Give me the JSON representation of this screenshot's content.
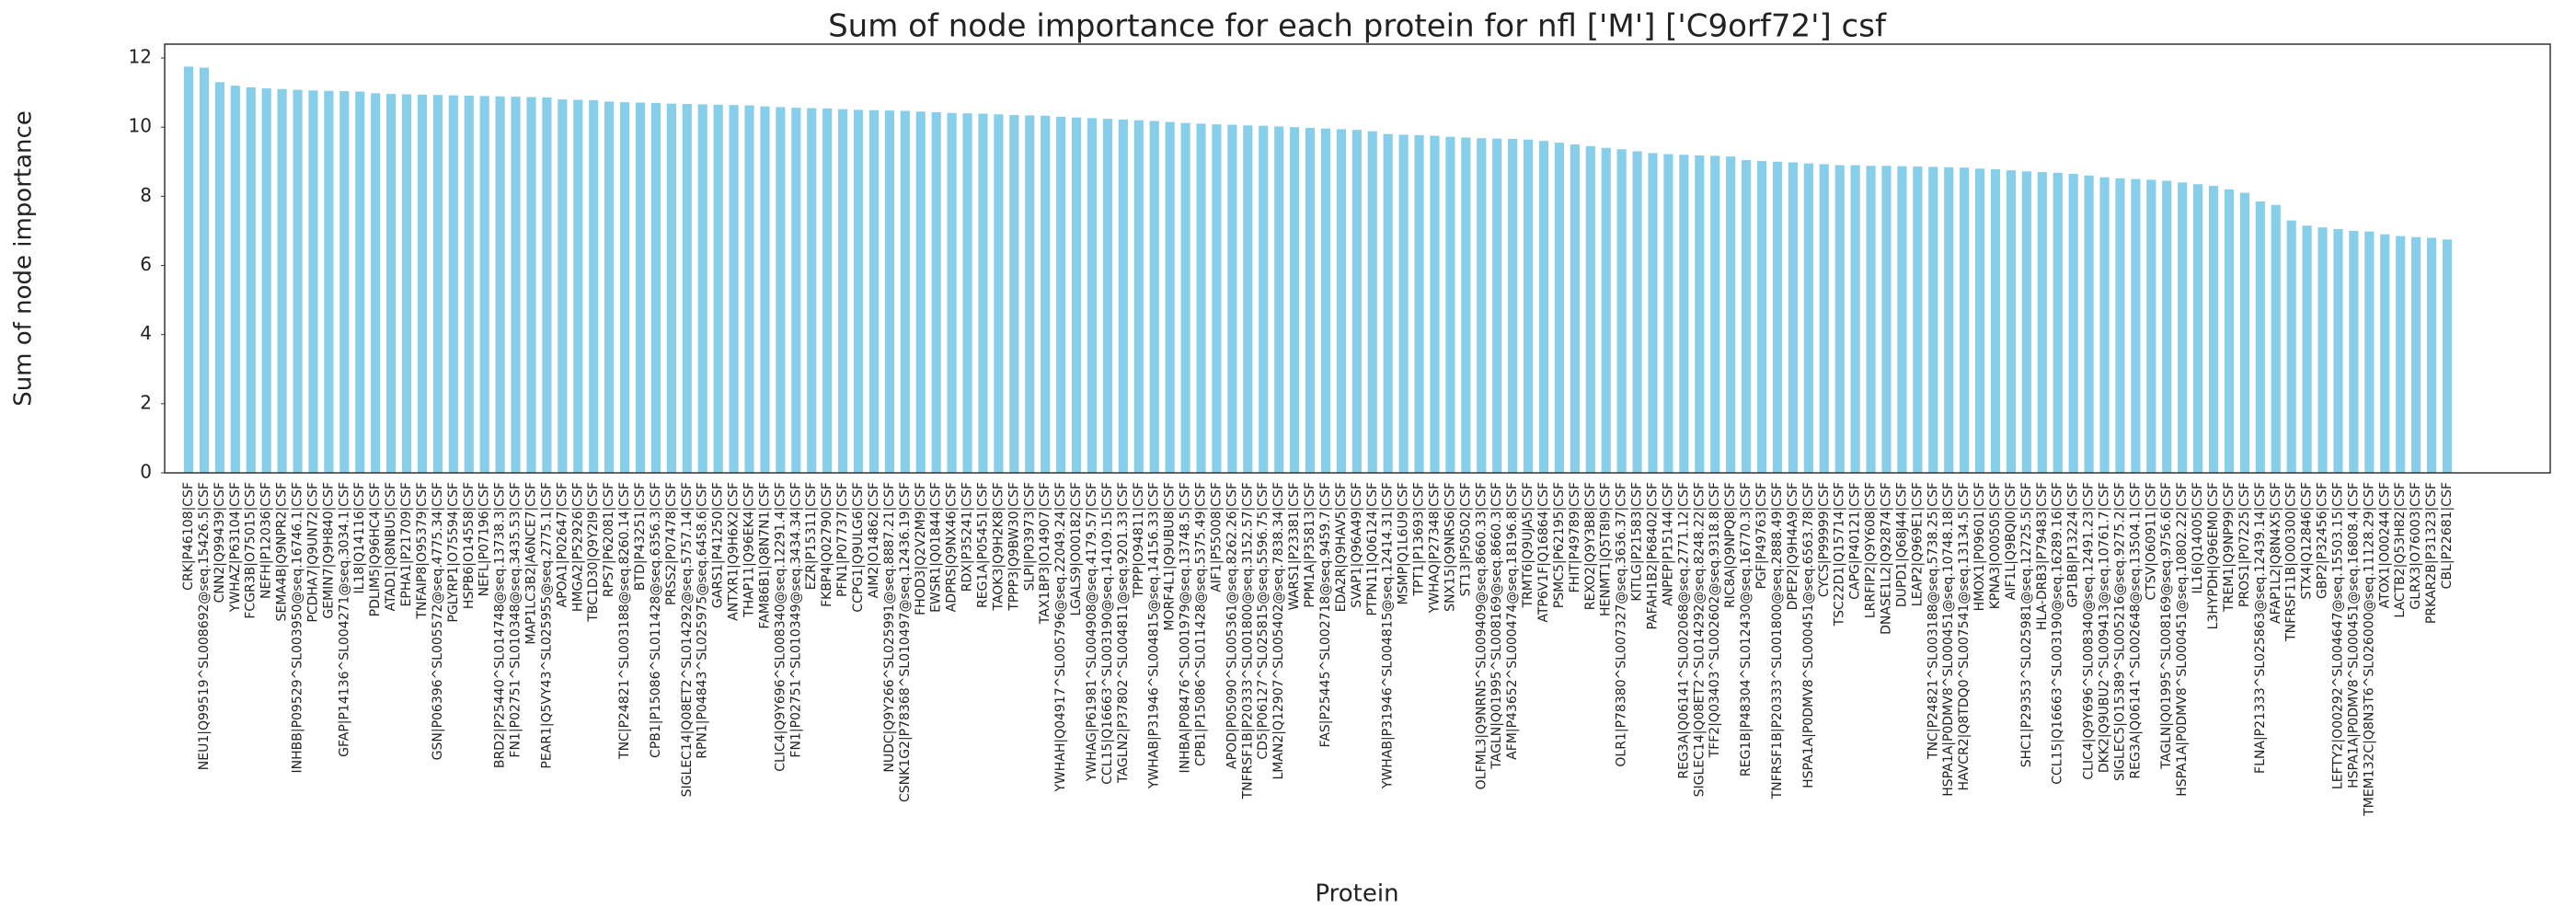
{
  "chart_data": {
    "type": "bar",
    "title": "Sum of node importance for each protein for nfl ['M'] ['C9orf72'] csf",
    "xlabel": "Protein",
    "ylabel": "Sum of node importance",
    "color": "#87ceeb",
    "ylim": [
      0,
      12.4
    ],
    "yticks": [
      0,
      2,
      4,
      6,
      8,
      10,
      12
    ],
    "categories": [
      "CRK|P46108|CSF",
      "NEU1|Q99519^SL008692@seq.15426.5|CSF",
      "CNN2|Q99439|CSF",
      "YWHAZ|P63104|CSF",
      "FCGR3B|O75015|CSF",
      "NEFH|P12036|CSF",
      "SEMA4B|Q9NPR2|CSF",
      "INHBB|P09529^SL003950@seq.16746.1|CSF",
      "PCDHA7|Q9UN72|CSF",
      "GEMIN7|Q9H840|CSF",
      "GFAP|P14136^SL004271@seq.3034.1|CSF",
      "IL18|Q14116|CSF",
      "PDLIM5|Q96HC4|CSF",
      "ATAD1|Q8NBU5|CSF",
      "EPHA1|P21709|CSF",
      "TNFAIP8|O95379|CSF",
      "GSN|P06396^SL005572@seq.4775.34|CSF",
      "PGLYRP1|O75594|CSF",
      "HSPB6|O14558|CSF",
      "NEFL|P07196|CSF",
      "BRD2|P25440^SL014748@seq.13738.3|CSF",
      "FN1|P02751^SL010348@seq.3435.53|CSF",
      "MAP1LC3B2|A6NCE7|CSF",
      "PEAR1|Q5VY43^SL025955@seq.2775.1|CSF",
      "APOA1|P02647|CSF",
      "HMGA2|P52926|CSF",
      "TBC1D30|Q9Y2I9|CSF",
      "RPS7|P62081|CSF",
      "TNC|P24821^SL003188@seq.8260.14|CSF",
      "BTD|P43251|CSF",
      "CPB1|P15086^SL011428@seq.6356.3|CSF",
      "PRSS2|P07478|CSF",
      "SIGLEC14|Q08ET2^SL014292@seq.5757.14|CSF",
      "RPN1|P04843^SL025975@seq.6458.6|CSF",
      "GARS1|P41250|CSF",
      "ANTXR1|Q9H6X2|CSF",
      "THAP11|Q96EK4|CSF",
      "FAM86B1|Q8N7N1|CSF",
      "CLIC4|Q9Y696^SL008340@seq.12291.4|CSF",
      "FN1|P02751^SL010349@seq.3434.34|CSF",
      "EZR|P15311|CSF",
      "FKBP4|Q02790|CSF",
      "PFN1|P07737|CSF",
      "CCPG1|Q9ULG6|CSF",
      "AIM2|O14862|CSF",
      "NUDC|Q9Y266^SL025991@seq.8887.21|CSF",
      "CSNK1G2|P78368^SL010497@seq.12436.19|CSF",
      "FHOD3|Q2V2M9|CSF",
      "EWSR1|Q01844|CSF",
      "ADPRS|Q9NX46|CSF",
      "RDX|P35241|CSF",
      "REG1A|P05451|CSF",
      "TAOK3|Q9H2K8|CSF",
      "TPPP3|Q9BW30|CSF",
      "SLPI|P03973|CSF",
      "TAX1BP3|O14907|CSF",
      "YWHAH|Q04917^SL005796@seq.22049.24|CSF",
      "LGALS9|O00182|CSF",
      "YWHAG|P61981^SL004908@seq.4179.57|CSF",
      "CCL15|Q16663^SL003190@seq.14109.15|CSF",
      "TAGLN2|P37802^SL004811@seq.9201.33|CSF",
      "TPPP|O94811|CSF",
      "YWHAB|P31946^SL004815@seq.14156.33|CSF",
      "MORF4L1|Q9UBU8|CSF",
      "INHBA|P08476^SL001979@seq.13748.5|CSF",
      "CPB1|P15086^SL011428@seq.5375.49|CSF",
      "AIF1|P55008|CSF",
      "APOD|P05090^SL005361@seq.8262.26|CSF",
      "TNFRSF1B|P20333^SL001800@seq.3152.57|CSF",
      "CD5|P06127^SL025815@seq.5596.75|CSF",
      "LMAN2|Q12907^SL005402@seq.7838.34|CSF",
      "WARS1|P23381|CSF",
      "PPM1A|P35813|CSF",
      "FAS|P25445^SL002718@seq.9459.7|CSF",
      "EDA2R|Q9HAV5|CSF",
      "SVAP1|Q96A49|CSF",
      "PTPN11|Q06124|CSF",
      "YWHAB|P31946^SL004815@seq.12414.31|CSF",
      "MSMP|Q1L6U9|CSF",
      "TPT1|P13693|CSF",
      "YWHAQ|P27348|CSF",
      "SNX15|Q9NRS6|CSF",
      "ST13|P50502|CSF",
      "OLFML3|Q9NRN5^SL009409@seq.8660.33|CSF",
      "TAGLN|Q01995^SL008169@seq.8660.3|CSF",
      "AFM|P43652^SL000474@seq.18196.8|CSF",
      "TRMT6|Q9UJA5|CSF",
      "ATP6V1F|Q16864|CSF",
      "PSMC5|P62195|CSF",
      "FHIT|P49789|CSF",
      "REXO2|Q9Y3B8|CSF",
      "HENMT1|Q5T8I9|CSF",
      "OLR1|P78380^SL007327@seq.3636.37|CSF",
      "KITLG|P21583|CSF",
      "PAFAH1B2|P68402|CSF",
      "ANPEP|P15144|CSF",
      "REG3A|Q06141^SL002068@seq.2771.12|CSF",
      "SIGLEC14|Q08ET2^SL014292@seq.8248.22|CSF",
      "TFF2|Q03403^SL002602@seq.9318.8|CSF",
      "RIC8A|Q9NPQ8|CSF",
      "REG1B|P48304^SL012430@seq.16770.3|CSF",
      "PGF|P49763|CSF",
      "TNFRSF1B|P20333^SL001800@seq.2888.49|CSF",
      "DPEP2|Q9H4A9|CSF",
      "HSPA1A|P0DMV8^SL000451@seq.6563.78|CSF",
      "CYCS|P99999|CSF",
      "TSC22D1|Q15714|CSF",
      "CAPG|P40121|CSF",
      "LRRFIP2|Q9Y608|CSF",
      "DNASE1L2|Q92874|CSF",
      "DUPD1|Q68J44|CSF",
      "LEAP2|Q969E1|CSF",
      "TNC|P24821^SL003188@seq.5738.25|CSF",
      "HSPA1A|P0DMV8^SL000451@seq.10748.18|CSF",
      "HAVCR2|Q8TDQ0^SL007541@seq.13134.5|CSF",
      "HMOX1|P09601|CSF",
      "KPNA3|O00505|CSF",
      "AIF1L|Q9BQI0|CSF",
      "SHC1|P29353^SL025981@seq.12725.5|CSF",
      "HLA-DRB3|P79483|CSF",
      "CCL15|Q16663^SL003190@seq.16289.16|CSF",
      "GP1BB|P13224|CSF",
      "CLIC4|Q9Y696^SL008340@seq.12491.23|CSF",
      "DKK2|Q9UBU2^SL009413@seq.10761.7|CSF",
      "SIGLEC5|O15389^SL005216@seq.9275.2|CSF",
      "REG3A|Q06141^SL002648@seq.13504.1|CSF",
      "CTSV|O60911|CSF",
      "TAGLN|Q01995^SL008169@seq.9756.6|CSF",
      "HSPA1A|P0DMV8^SL000451@seq.10802.22|CSF",
      "IL16|Q14005|CSF",
      "L3HYPDH|Q96EM0|CSF",
      "TREM1|Q9NP99|CSF",
      "PROS1|P07225|CSF",
      "FLNA|P21333^SL025863@seq.12439.14|CSF",
      "AFAP1L2|Q8N4X5|CSF",
      "TNFRSF11B|O00300|CSF",
      "STX4|Q12846|CSF",
      "GBP2|P32456|CSF",
      "LEFTY2|O00292^SL004647@seq.15503.15|CSF",
      "HSPA1A|P0DMV8^SL000451@seq.16808.4|CSF",
      "TMEM132C|Q8N3T6^SL026000@seq.11128.29|CSF",
      "ATOX1|O00244|CSF",
      "LACTB2|Q53H82|CSF",
      "GLRX3|O76003|CSF",
      "PRKAR2B|P31323|CSF",
      "CBL|P22681|CSF"
    ],
    "values": [
      11.75,
      11.72,
      11.3,
      11.2,
      11.15,
      11.12,
      11.1,
      11.08,
      11.06,
      11.05,
      11.04,
      11.03,
      10.98,
      10.96,
      10.95,
      10.94,
      10.93,
      10.92,
      10.91,
      10.9,
      10.89,
      10.88,
      10.87,
      10.86,
      10.8,
      10.79,
      10.78,
      10.74,
      10.72,
      10.71,
      10.7,
      10.68,
      10.67,
      10.66,
      10.65,
      10.64,
      10.63,
      10.6,
      10.58,
      10.56,
      10.55,
      10.54,
      10.52,
      10.5,
      10.49,
      10.48,
      10.47,
      10.45,
      10.43,
      10.41,
      10.4,
      10.39,
      10.37,
      10.35,
      10.34,
      10.33,
      10.3,
      10.28,
      10.26,
      10.24,
      10.22,
      10.2,
      10.18,
      10.15,
      10.12,
      10.1,
      10.08,
      10.07,
      10.05,
      10.04,
      10.02,
      10.0,
      9.98,
      9.96,
      9.94,
      9.92,
      9.88,
      9.8,
      9.78,
      9.77,
      9.75,
      9.72,
      9.7,
      9.68,
      9.67,
      9.66,
      9.64,
      9.6,
      9.55,
      9.5,
      9.45,
      9.4,
      9.36,
      9.3,
      9.25,
      9.22,
      9.2,
      9.18,
      9.17,
      9.15,
      9.05,
      9.02,
      9.0,
      8.98,
      8.95,
      8.93,
      8.9,
      8.9,
      8.88,
      8.88,
      8.87,
      8.86,
      8.85,
      8.84,
      8.83,
      8.8,
      8.78,
      8.75,
      8.72,
      8.7,
      8.68,
      8.65,
      8.6,
      8.55,
      8.52,
      8.5,
      8.48,
      8.45,
      8.4,
      8.35,
      8.3,
      8.2,
      8.1,
      7.85,
      7.75,
      7.3,
      7.15,
      7.1,
      7.05,
      7.0,
      6.98,
      6.9,
      6.85,
      6.82,
      6.8,
      6.75
    ]
  }
}
